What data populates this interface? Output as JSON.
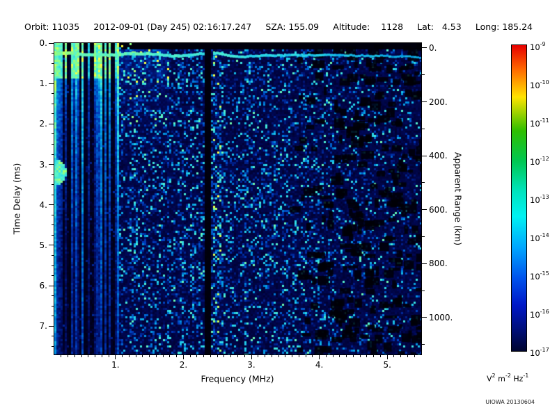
{
  "header": {
    "items": [
      "Orbit: 11035",
      "2012-09-01 (Day 245) 02:16:17.247",
      "SZA: 155.09",
      "Altitude:    1128",
      "Lat:   4.53",
      "Long: 185.24"
    ]
  },
  "chart_data": {
    "type": "heatmap",
    "description": "Radar sounder ionogram: received spectral density vs frequency and time delay, cyan speckle on dark blue background",
    "xlabel": "Frequency (MHz)",
    "ylabel_left": "Time Delay (ms)",
    "ylabel_right": "Apparent Range (km)",
    "xlim": [
      0.1,
      5.5
    ],
    "ylim": [
      0,
      7.7
    ],
    "x_major_ticks": [
      {
        "v": 1,
        "label": "1."
      },
      {
        "v": 2,
        "label": "2."
      },
      {
        "v": 3,
        "label": "3."
      },
      {
        "v": 4,
        "label": "4."
      },
      {
        "v": 5,
        "label": "5."
      }
    ],
    "x_minor_step": 0.1,
    "y_left_ticks": [
      {
        "v": 0,
        "label": "0."
      },
      {
        "v": 1,
        "label": "1."
      },
      {
        "v": 2,
        "label": "2."
      },
      {
        "v": 3,
        "label": "3."
      },
      {
        "v": 4,
        "label": "4."
      },
      {
        "v": 5,
        "label": "5."
      },
      {
        "v": 6,
        "label": "6."
      },
      {
        "v": 7,
        "label": "7."
      }
    ],
    "y_left_minor_step": 0.25,
    "y_right_ticks": [
      {
        "v": 0,
        "label": "0."
      },
      {
        "v": 200,
        "label": "200."
      },
      {
        "v": 400,
        "label": "400."
      },
      {
        "v": 600,
        "label": "600."
      },
      {
        "v": 800,
        "label": "800."
      },
      {
        "v": 1000,
        "label": "1000."
      }
    ],
    "y_right_minor_step": 100,
    "range_zero_delay_ms": 0.12,
    "km_per_ms": 150,
    "colorbar": {
      "scale": "log",
      "max": "1e-9",
      "min": "1e-17",
      "tick_base": "10",
      "tick_exponents": [
        "-9",
        "-10",
        "-11",
        "-12",
        "-13",
        "-14",
        "-15",
        "-16",
        "-17"
      ],
      "unit_tokens": [
        [
          "V",
          "2"
        ],
        [
          "m",
          "-2"
        ],
        [
          "Hz",
          "-1"
        ]
      ],
      "gradient": [
        [
          0,
          "#e80000"
        ],
        [
          0.08,
          "#ff6a00"
        ],
        [
          0.17,
          "#ffe400"
        ],
        [
          0.28,
          "#2fbf00"
        ],
        [
          0.38,
          "#00c853"
        ],
        [
          0.48,
          "#00e5c0"
        ],
        [
          0.56,
          "#00f2f2"
        ],
        [
          0.66,
          "#00a8ff"
        ],
        [
          0.76,
          "#0055ee"
        ],
        [
          0.85,
          "#0018c8"
        ],
        [
          0.93,
          "#000f7a"
        ],
        [
          1,
          "#000530"
        ]
      ]
    },
    "heat_stops": [
      [
        0,
        [
          0,
          0,
          8
        ]
      ],
      [
        0.18,
        [
          0,
          0,
          45
        ]
      ],
      [
        0.32,
        [
          0,
          10,
          95
        ]
      ],
      [
        0.5,
        [
          0,
          60,
          190
        ]
      ],
      [
        0.66,
        [
          0,
          150,
          225
        ]
      ],
      [
        0.78,
        [
          40,
          215,
          235
        ]
      ],
      [
        0.88,
        [
          90,
          245,
          200
        ]
      ],
      [
        0.94,
        [
          150,
          255,
          120
        ]
      ],
      [
        1,
        [
          255,
          255,
          60
        ]
      ]
    ],
    "features": {
      "top_blank_band_ms": [
        0,
        0.17
      ],
      "surface_echo_delay_ms": 0.3,
      "plasma_striation_band_mhz": [
        0.1,
        1.05
      ],
      "blank_frequency_band_mhz": [
        2.3,
        2.42
      ],
      "dark_columns_mhz": [
        0.33,
        0.54
      ],
      "enhanced_column_mhz": 2.5,
      "dark_patch_region_mhz": [
        3.6,
        5.5
      ],
      "bright_blob": {
        "freq_mhz": 0.16,
        "delay_ms": 3.2
      }
    },
    "seed": 20130604
  },
  "footer": {
    "credit": "UIOWA 20130604"
  }
}
